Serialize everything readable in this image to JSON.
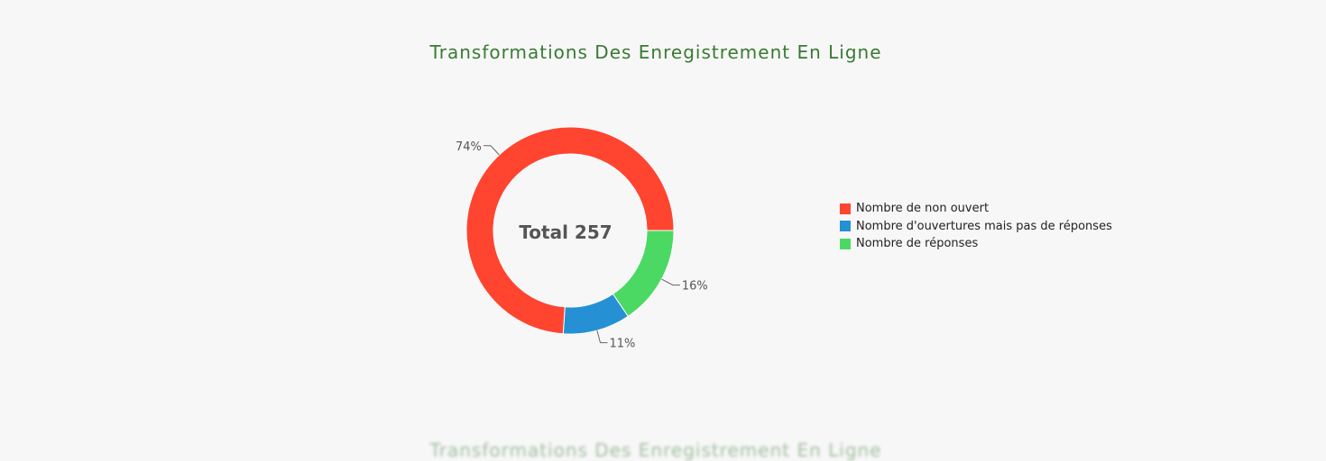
{
  "colors": {
    "background": "#f7f7f7",
    "title": "#3a7a34"
  },
  "chart_data": {
    "type": "pie",
    "variant": "donut",
    "title": "Transformations Des Enregistrement En Ligne",
    "center_label": "Total 257",
    "total": 257,
    "series": [
      {
        "name": "Nombre de non ouvert",
        "value": 190,
        "percent_label": "74%",
        "color": "#ff4430"
      },
      {
        "name": "Nombre d'ouvertures mais pas de réponses",
        "value": 27,
        "percent_label": "11%",
        "color": "#2690d4"
      },
      {
        "name": "Nombre de réponses",
        "value": 40,
        "percent_label": "16%",
        "color": "#4bd964"
      }
    ],
    "legend_position": "right"
  }
}
